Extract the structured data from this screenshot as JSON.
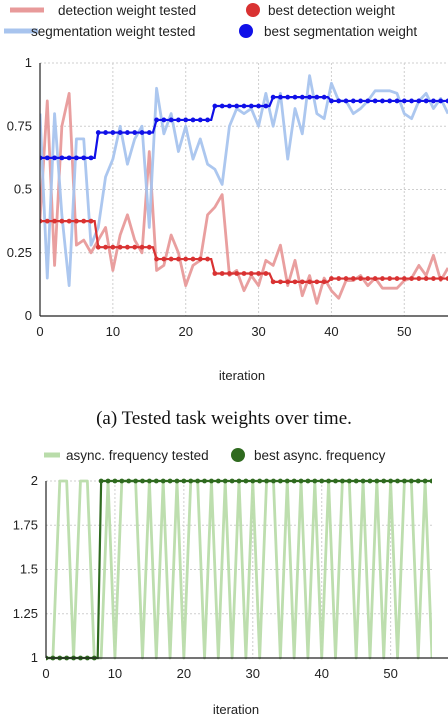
{
  "chart_data": [
    {
      "type": "line",
      "xlabel": "iteration",
      "caption": "(a) Tested task weights over time.",
      "xlim": [
        0,
        56
      ],
      "ylim": [
        0,
        1
      ],
      "xticks": [
        0,
        10,
        20,
        30,
        40,
        50
      ],
      "yticks": [
        0,
        0.25,
        0.5,
        0.75,
        1
      ],
      "ytick_labels": [
        "0",
        "0.25",
        "0.5",
        "0.75",
        "1"
      ],
      "legend_placement": "top",
      "series": [
        {
          "name": "detection weight tested",
          "kind": "tested",
          "color": "#e89a9a",
          "x": [
            0,
            1,
            2,
            3,
            4,
            5,
            6,
            7,
            8,
            9,
            10,
            11,
            12,
            13,
            14,
            15,
            16,
            17,
            18,
            19,
            20,
            21,
            22,
            23,
            24,
            25,
            26,
            27,
            28,
            29,
            30,
            31,
            32,
            33,
            34,
            35,
            36,
            37,
            38,
            39,
            40,
            41,
            42,
            43,
            44,
            45,
            46,
            47,
            48,
            49,
            50,
            51,
            52,
            53,
            54,
            55,
            56
          ],
          "values": [
            0.38,
            0.85,
            0.2,
            0.75,
            0.88,
            0.28,
            0.3,
            0.25,
            0.3,
            0.35,
            0.18,
            0.32,
            0.4,
            0.3,
            0.25,
            0.65,
            0.18,
            0.2,
            0.32,
            0.25,
            0.12,
            0.2,
            0.22,
            0.4,
            0.43,
            0.48,
            0.16,
            0.18,
            0.1,
            0.16,
            0.12,
            0.22,
            0.2,
            0.28,
            0.12,
            0.22,
            0.08,
            0.16,
            0.05,
            0.15,
            0.1,
            0.07,
            0.14,
            0.14,
            0.16,
            0.12,
            0.15,
            0.11,
            0.11,
            0.11,
            0.14,
            0.15,
            0.2,
            0.16,
            0.24,
            0.14,
            0.19
          ]
        },
        {
          "name": "segmentation weight tested",
          "kind": "tested",
          "color": "#a8c4ee",
          "x": [
            0,
            1,
            2,
            3,
            4,
            5,
            6,
            7,
            8,
            9,
            10,
            11,
            12,
            13,
            14,
            15,
            16,
            17,
            18,
            19,
            20,
            21,
            22,
            23,
            24,
            25,
            26,
            27,
            28,
            29,
            30,
            31,
            32,
            33,
            34,
            35,
            36,
            37,
            38,
            39,
            40,
            41,
            42,
            43,
            44,
            45,
            46,
            47,
            48,
            49,
            50,
            51,
            52,
            53,
            54,
            55,
            56
          ],
          "values": [
            0.8,
            0.15,
            0.8,
            0.4,
            0.12,
            0.7,
            0.7,
            0.28,
            0.35,
            0.55,
            0.62,
            0.75,
            0.6,
            0.7,
            0.75,
            0.35,
            0.9,
            0.72,
            0.8,
            0.65,
            0.75,
            0.62,
            0.7,
            0.6,
            0.58,
            0.52,
            0.75,
            0.82,
            0.8,
            0.82,
            0.75,
            0.88,
            0.75,
            0.88,
            0.62,
            0.82,
            0.72,
            0.95,
            0.8,
            0.78,
            0.92,
            0.85,
            0.85,
            0.8,
            0.82,
            0.85,
            0.89,
            0.89,
            0.89,
            0.88,
            0.8,
            0.78,
            0.85,
            0.88,
            0.82,
            0.86,
            0.8
          ]
        },
        {
          "name": "best detection weight",
          "kind": "best",
          "color": "#d93232",
          "steps": [
            [
              0,
              0.375
            ],
            [
              7.5,
              0.375
            ],
            [
              8,
              0.272
            ],
            [
              15.5,
              0.272
            ],
            [
              16,
              0.225
            ],
            [
              23.5,
              0.225
            ],
            [
              24,
              0.168
            ],
            [
              31.5,
              0.168
            ],
            [
              32,
              0.135
            ],
            [
              39.5,
              0.135
            ],
            [
              40,
              0.148
            ],
            [
              56,
              0.148
            ]
          ]
        },
        {
          "name": "best segmentation weight",
          "kind": "best",
          "color": "#1010e8",
          "steps": [
            [
              0,
              0.625
            ],
            [
              7.5,
              0.625
            ],
            [
              8,
              0.725
            ],
            [
              15.5,
              0.725
            ],
            [
              16,
              0.775
            ],
            [
              23.5,
              0.775
            ],
            [
              24,
              0.83
            ],
            [
              31.5,
              0.83
            ],
            [
              32,
              0.865
            ],
            [
              39.5,
              0.865
            ],
            [
              40,
              0.85
            ],
            [
              56,
              0.85
            ]
          ]
        }
      ]
    },
    {
      "type": "line",
      "xlabel": "iteration",
      "xlim": [
        0,
        56
      ],
      "ylim": [
        1,
        2
      ],
      "xticks": [
        0,
        10,
        20,
        30,
        40,
        50
      ],
      "yticks": [
        1,
        1.25,
        1.5,
        1.75,
        2
      ],
      "ytick_labels": [
        "1",
        "1.25",
        "1.5",
        "1.75",
        "2"
      ],
      "legend_placement": "top",
      "series": [
        {
          "name": "async. frequency tested",
          "kind": "tested",
          "color": "#b9dcaa",
          "x": [
            0,
            1,
            2,
            3,
            4,
            5,
            6,
            7,
            8,
            9,
            10,
            11,
            12,
            13,
            14,
            15,
            16,
            17,
            18,
            19,
            20,
            21,
            22,
            23,
            24,
            25,
            26,
            27,
            28,
            29,
            30,
            31,
            32,
            33,
            34,
            35,
            36,
            37,
            38,
            39,
            40,
            41,
            42,
            43,
            44,
            45,
            46,
            47,
            48,
            49,
            50,
            51,
            52,
            53,
            54,
            55,
            56
          ],
          "values": [
            1,
            1,
            2,
            2,
            1,
            2,
            2,
            1,
            1,
            2,
            1,
            2,
            2,
            2,
            1,
            2,
            1,
            2,
            1,
            2,
            1,
            2,
            2,
            1,
            2,
            1,
            2,
            1,
            2,
            1,
            2,
            1,
            2,
            2,
            1,
            2,
            1,
            2,
            1,
            2,
            1,
            2,
            1,
            2,
            2,
            1,
            2,
            1,
            2,
            1,
            2,
            1,
            2,
            2,
            1,
            2,
            1
          ]
        },
        {
          "name": "best async. frequency",
          "kind": "best",
          "color": "#2f6a1f",
          "steps": [
            [
              0,
              1
            ],
            [
              7.5,
              1
            ],
            [
              8,
              2
            ],
            [
              56,
              2
            ]
          ]
        }
      ]
    }
  ]
}
